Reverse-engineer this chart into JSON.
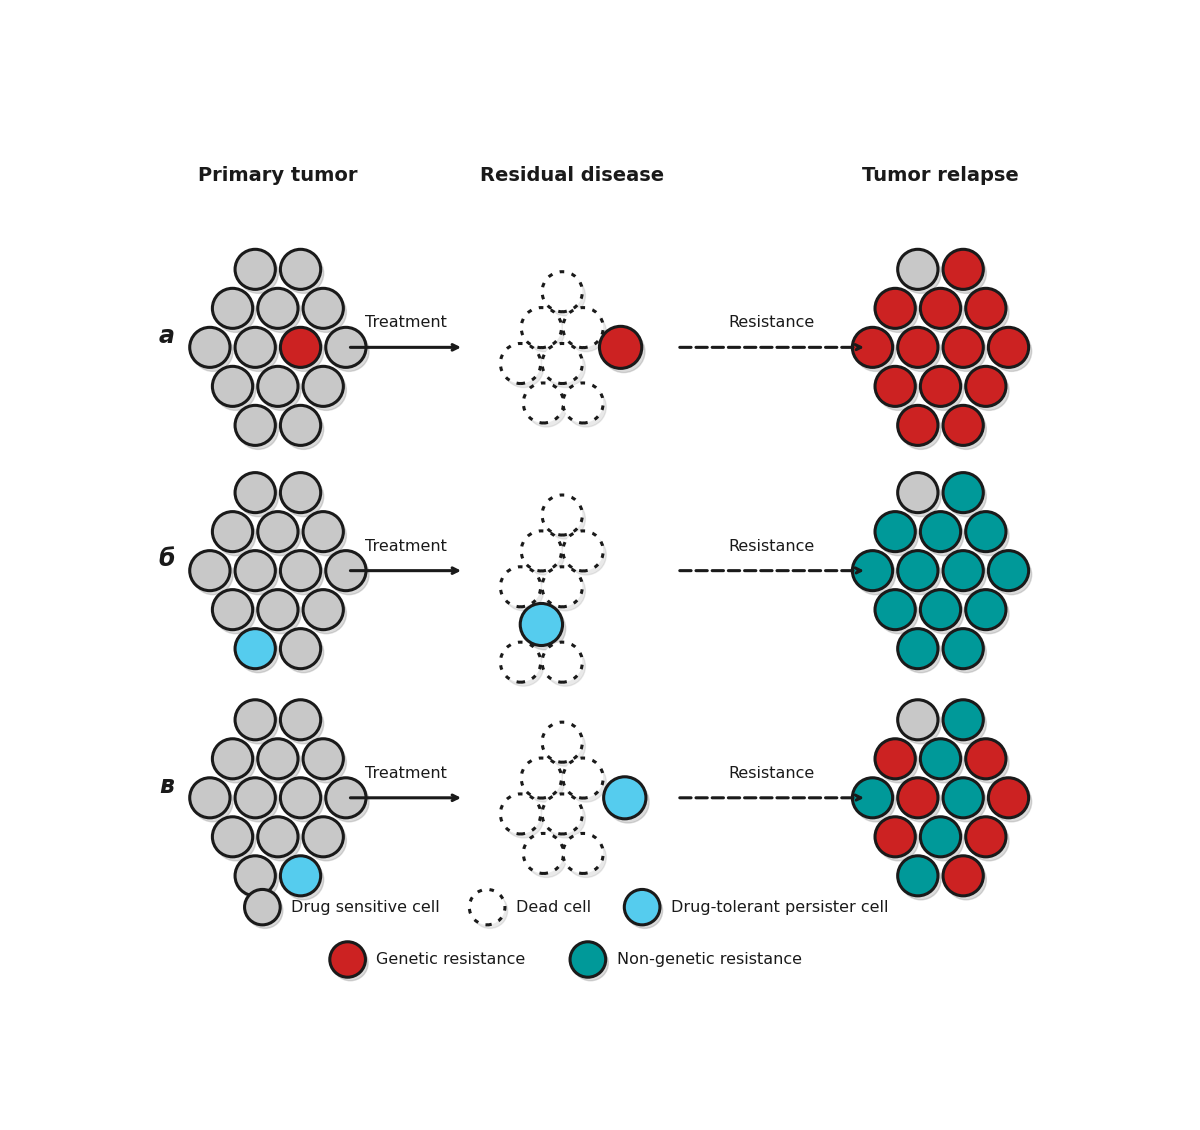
{
  "title_col1": "Primary tumor",
  "title_col2": "Residual disease",
  "title_col3": "Tumor relapse",
  "row_labels": [
    "а",
    "б",
    "в"
  ],
  "arrow_label1": "Treatment",
  "arrow_label2": "Resistance",
  "colors": {
    "gray": "#c8c8c8",
    "red": "#cc2222",
    "cyan": "#55ccee",
    "teal": "#009999",
    "white": "#ffffff",
    "black": "#1a1a1a",
    "outline": "#1a1a1a",
    "shadow": "#888888"
  },
  "legend_row1": [
    {
      "label": "Drug sensitive cell",
      "color": "#c8c8c8",
      "style": "filled"
    },
    {
      "label": "Dead cell",
      "color": "#ffffff",
      "style": "dotted"
    },
    {
      "label": "Drug-tolerant persister cell",
      "color": "#55ccee",
      "style": "filled"
    }
  ],
  "legend_row2": [
    {
      "label": "Genetic resistance",
      "color": "#cc2222",
      "style": "filled"
    },
    {
      "label": "Non-genetic resistance",
      "color": "#009999",
      "style": "filled"
    }
  ]
}
